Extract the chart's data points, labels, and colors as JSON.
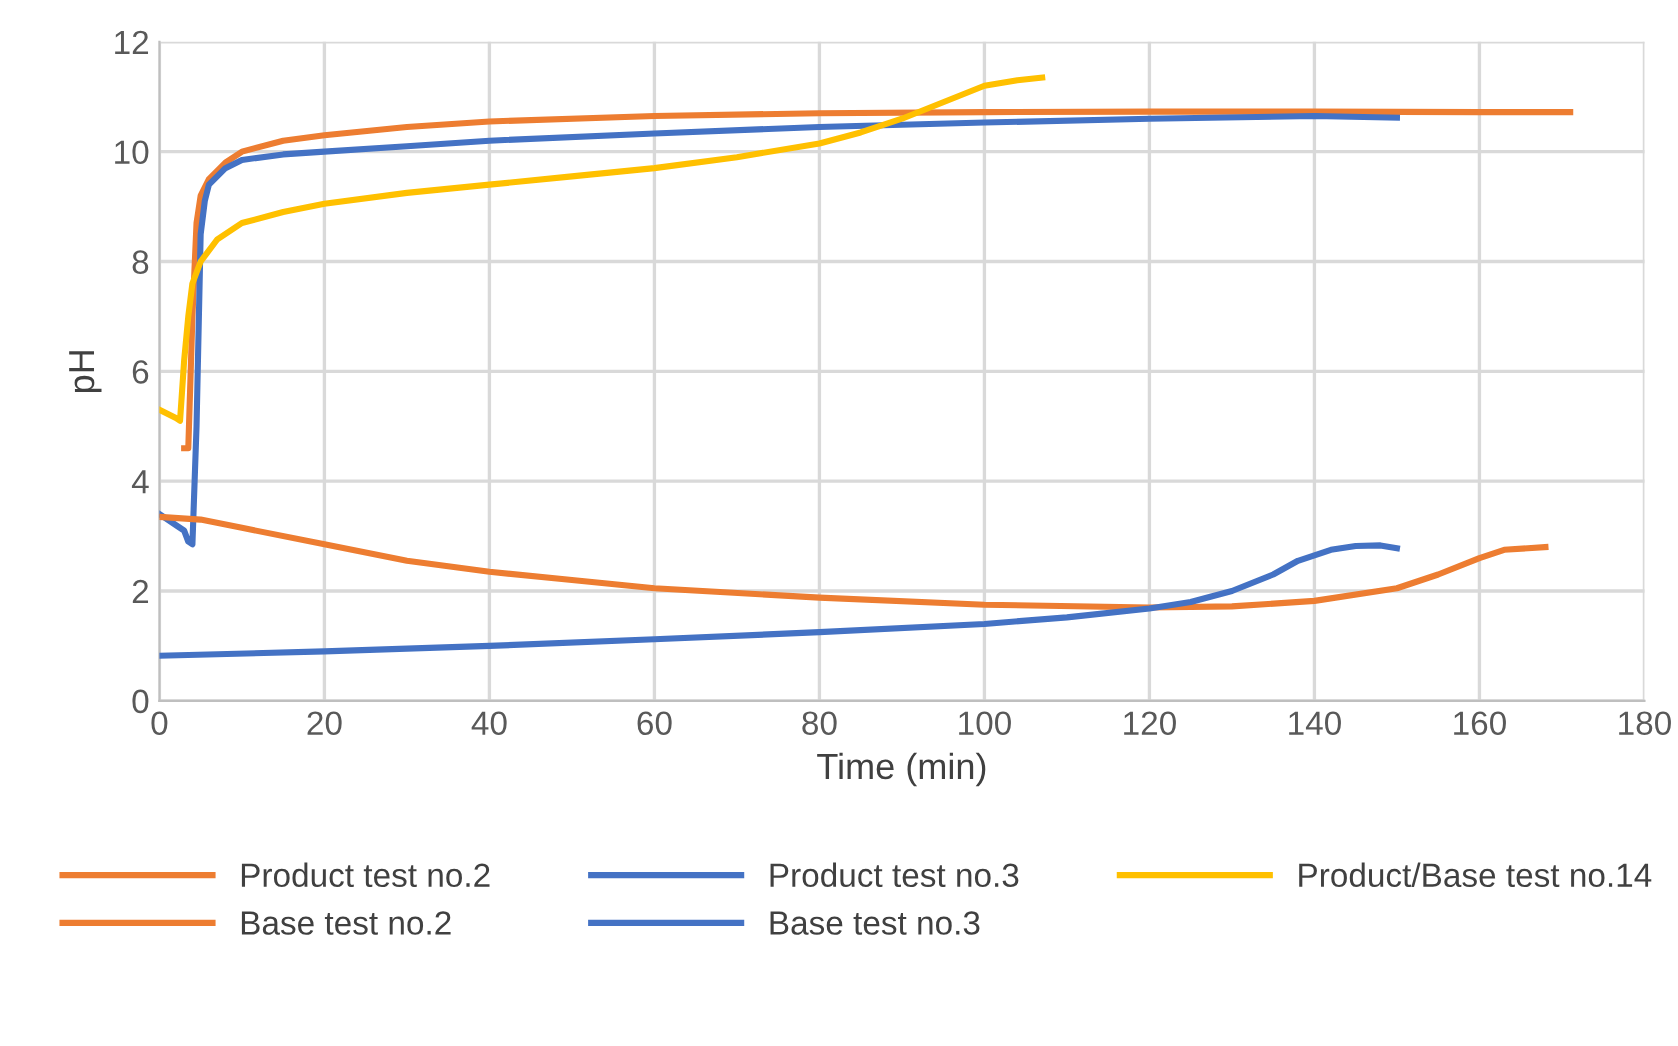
{
  "chart_data": {
    "type": "line",
    "xlabel": "Time (min)",
    "ylabel": "pH",
    "xlim": [
      0,
      180
    ],
    "xticks": [
      0,
      20,
      40,
      60,
      80,
      100,
      120,
      140,
      160,
      180
    ],
    "ylim": [
      0,
      12
    ],
    "yticks": [
      0,
      2,
      4,
      6,
      8,
      10,
      12
    ],
    "grid": true,
    "legend": "bottom",
    "marker": "none",
    "line_style": "solid",
    "series": [
      {
        "name": "Product test no.2",
        "color": "#ed7d31",
        "x": [
          3,
          3.5,
          4,
          4.5,
          5,
          6,
          8,
          10,
          15,
          20,
          30,
          40,
          60,
          80,
          100,
          120,
          140,
          160,
          171
        ],
        "values": [
          4.6,
          4.6,
          7,
          8.7,
          9.2,
          9.5,
          9.8,
          10.0,
          10.2,
          10.3,
          10.45,
          10.55,
          10.65,
          10.7,
          10.72,
          10.73,
          10.73,
          10.72,
          10.72
        ]
      },
      {
        "name": "Product test no.3",
        "color": "#4472c4",
        "x": [
          0,
          2,
          3,
          3.5,
          4,
          4.5,
          5,
          5.5,
          6,
          8,
          10,
          15,
          20,
          30,
          40,
          60,
          80,
          100,
          120,
          140,
          150
        ],
        "values": [
          3.4,
          3.2,
          3.1,
          2.9,
          2.85,
          5,
          8.5,
          9.1,
          9.4,
          9.7,
          9.85,
          9.95,
          10.0,
          10.1,
          10.2,
          10.33,
          10.45,
          10.53,
          10.6,
          10.65,
          10.62
        ]
      },
      {
        "name": "Product/Base test no.14",
        "color": "#ffc000",
        "x": [
          0,
          2,
          2.5,
          3,
          3.5,
          4,
          5,
          7,
          10,
          15,
          20,
          30,
          40,
          50,
          60,
          70,
          80,
          85,
          90,
          95,
          100,
          104,
          107
        ],
        "values": [
          5.3,
          5.15,
          5.1,
          6.2,
          7,
          7.6,
          8.0,
          8.4,
          8.7,
          8.9,
          9.05,
          9.25,
          9.4,
          9.55,
          9.7,
          9.9,
          10.15,
          10.35,
          10.6,
          10.9,
          11.2,
          11.3,
          11.35
        ]
      },
      {
        "name": "Base test no.2",
        "color": "#ed7d31",
        "x": [
          0,
          5,
          10,
          20,
          30,
          40,
          50,
          60,
          80,
          100,
          120,
          130,
          140,
          150,
          155,
          160,
          163,
          168
        ],
        "values": [
          3.35,
          3.3,
          3.15,
          2.85,
          2.55,
          2.35,
          2.2,
          2.05,
          1.88,
          1.75,
          1.7,
          1.72,
          1.82,
          2.05,
          2.3,
          2.6,
          2.75,
          2.8
        ]
      },
      {
        "name": "Base test no.3",
        "color": "#4472c4",
        "x": [
          0,
          20,
          40,
          60,
          80,
          100,
          110,
          120,
          125,
          130,
          135,
          138,
          142,
          145,
          148,
          150
        ],
        "values": [
          0.82,
          0.9,
          1.0,
          1.12,
          1.25,
          1.4,
          1.52,
          1.68,
          1.8,
          2.0,
          2.3,
          2.55,
          2.75,
          2.82,
          2.83,
          2.78
        ]
      }
    ]
  }
}
